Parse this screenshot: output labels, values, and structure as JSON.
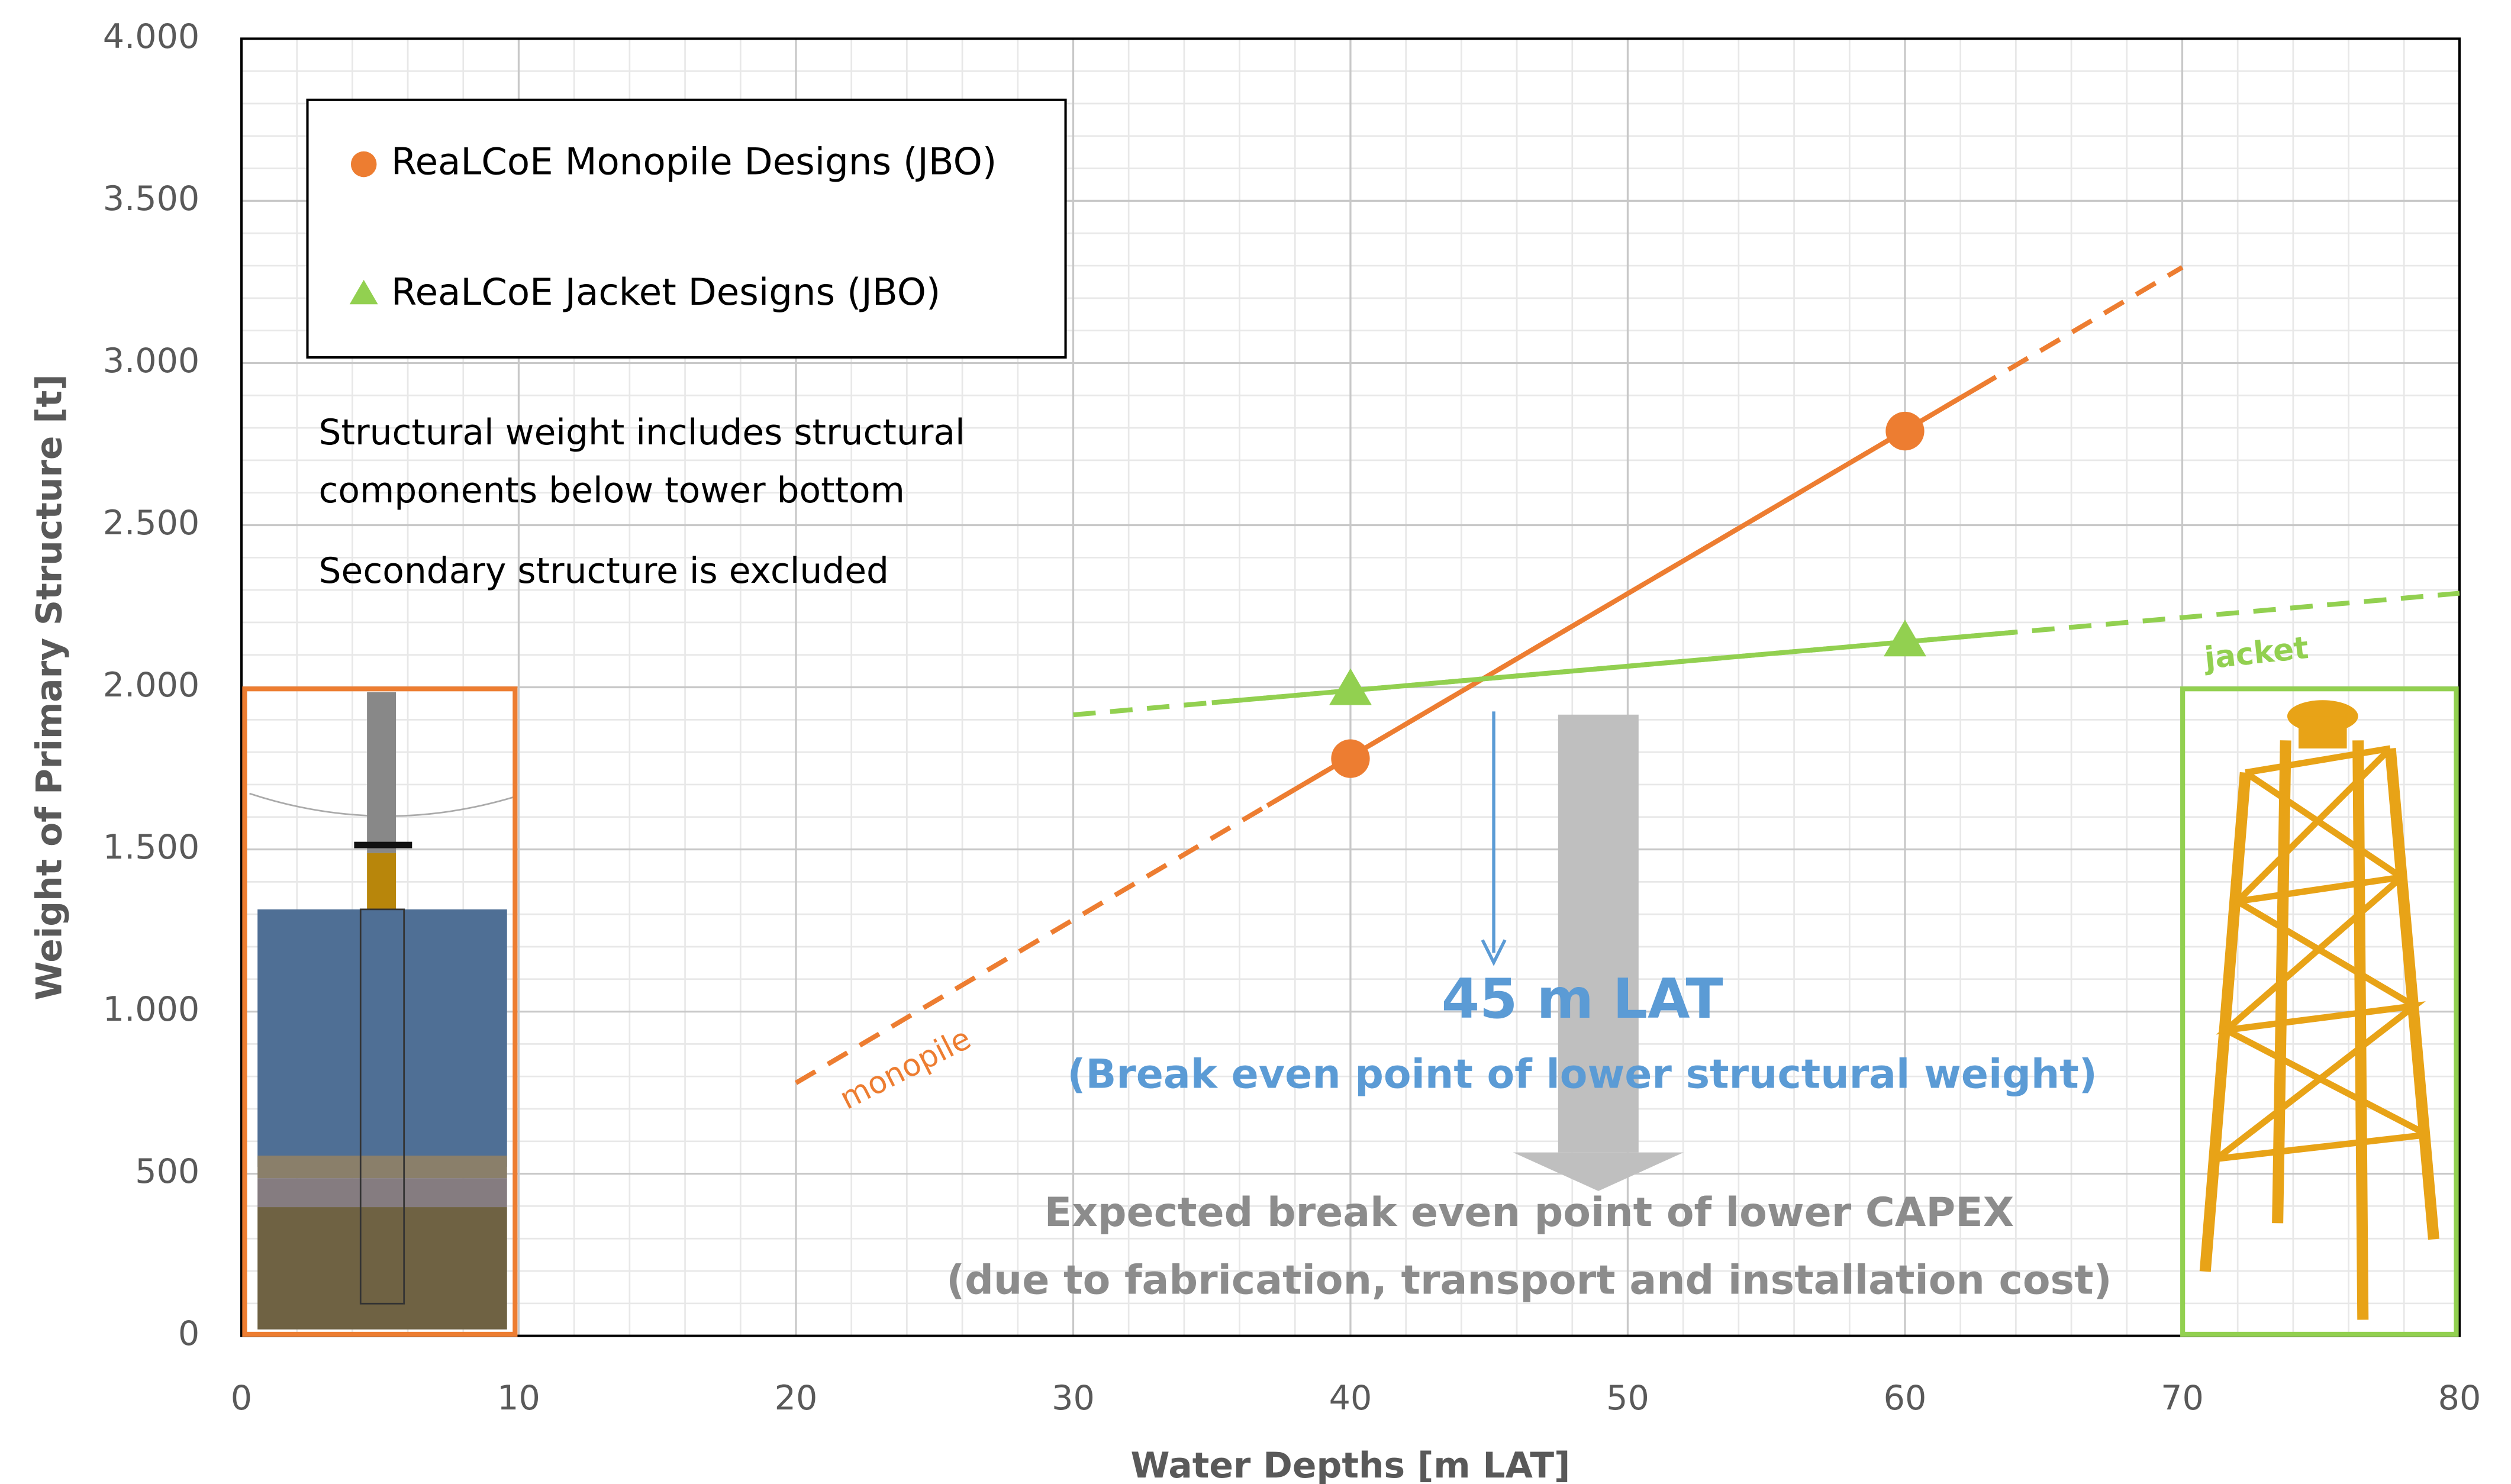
{
  "chart_data": {
    "type": "scatter",
    "x_label": "Water Depths [m LAT]",
    "y_label": "Weight of Primary Structure [t]",
    "xlim": [
      0,
      80
    ],
    "ylim": [
      0,
      4000
    ],
    "xticks": [
      0,
      10,
      20,
      30,
      40,
      50,
      60,
      70,
      80
    ],
    "yticks": [
      0,
      {
        "value": 500,
        "label": "500"
      },
      {
        "value": 1000,
        "label": "1.000"
      },
      {
        "value": 1500,
        "label": "1.500"
      },
      {
        "value": 2000,
        "label": "2.000"
      },
      {
        "value": 2500,
        "label": "2.500"
      },
      {
        "value": 3000,
        "label": "3.000"
      },
      {
        "value": 3500,
        "label": "3.500"
      },
      {
        "value": 4000,
        "label": "4.000"
      }
    ],
    "grid": true,
    "series": [
      {
        "name": "ReaLCoE Monopile Designs (JBO)",
        "color": "#ed7d31",
        "marker": "circle",
        "x": [
          40,
          60
        ],
        "values": [
          1780,
          2790
        ]
      },
      {
        "name": "ReaLCoE Jacket Designs (JBO)",
        "color": "#92d050",
        "marker": "triangle",
        "x": [
          40,
          60
        ],
        "values": [
          1990,
          2140
        ]
      }
    ],
    "trend_lines": [
      {
        "label": "monopile",
        "color": "#ed7d31",
        "x": [
          20,
          70
        ],
        "values": [
          780,
          3295
        ],
        "solid": [
          37,
          63
        ]
      },
      {
        "label": "jacket",
        "color": "#92d050",
        "x": [
          30,
          80
        ],
        "values": [
          1915,
          2290
        ],
        "solid": [
          35,
          64
        ]
      }
    ],
    "notes": [
      "Structural weight includes structural",
      "components below tower bottom",
      "Secondary structure is excluded"
    ],
    "break_even": {
      "title": "45 m LAT",
      "subtitle": "(Break even point of lower structural weight)"
    },
    "capex": [
      "Expected break even point of lower CAPEX",
      "(due to fabrication, transport and installation cost)"
    ]
  }
}
